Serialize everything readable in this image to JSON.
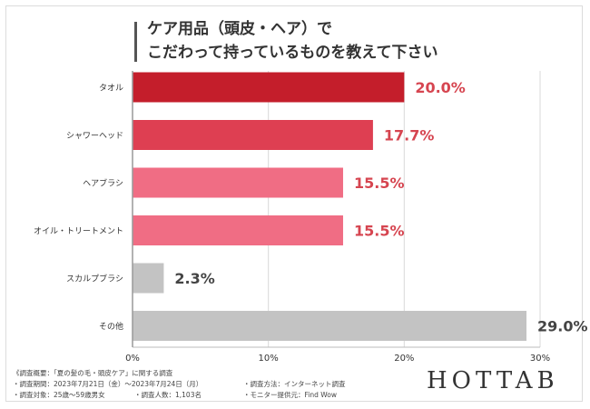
{
  "title": {
    "line1": "ケア用品（頭皮・ヘア）で",
    "line2": "こだわって持っているものを教えて下さい"
  },
  "chart_data": {
    "type": "bar",
    "orientation": "horizontal",
    "categories": [
      "タオル",
      "シャワーヘッド",
      "ヘアブラシ",
      "オイル・トリートメント",
      "スカルプブラシ",
      "その他"
    ],
    "values": [
      20.0,
      17.7,
      15.5,
      15.5,
      2.3,
      29.0
    ],
    "value_labels": [
      "20.0%",
      "17.7%",
      "15.5%",
      "15.5%",
      "2.3%",
      "29.0%"
    ],
    "bar_colors": [
      "#c41e2b",
      "#de3f52",
      "#f06d84",
      "#f06d84",
      "#c3c3c3",
      "#c3c3c3"
    ],
    "label_colors": [
      "#d64550",
      "#d64550",
      "#d64550",
      "#d64550",
      "#444444",
      "#444444"
    ],
    "xlim": [
      0,
      30
    ],
    "xticks": [
      0,
      10,
      20,
      30
    ],
    "xtick_labels": [
      "0%",
      "10%",
      "20%",
      "30%"
    ],
    "grid": true
  },
  "footnotes": {
    "survey_name": "《調査概要：「夏の髪の毛・頭皮ケア」に関する調査",
    "period": "・調査期間：2023年7月21日（金）〜2023年7月24日（月）",
    "method": "・調査方法：インターネット調査",
    "target": "・調査対象：25歳〜59歳男女",
    "count": "・調査人数：1,103名",
    "provider": "・モニター提供元：Find Wow"
  },
  "logo": "HOTTAB"
}
